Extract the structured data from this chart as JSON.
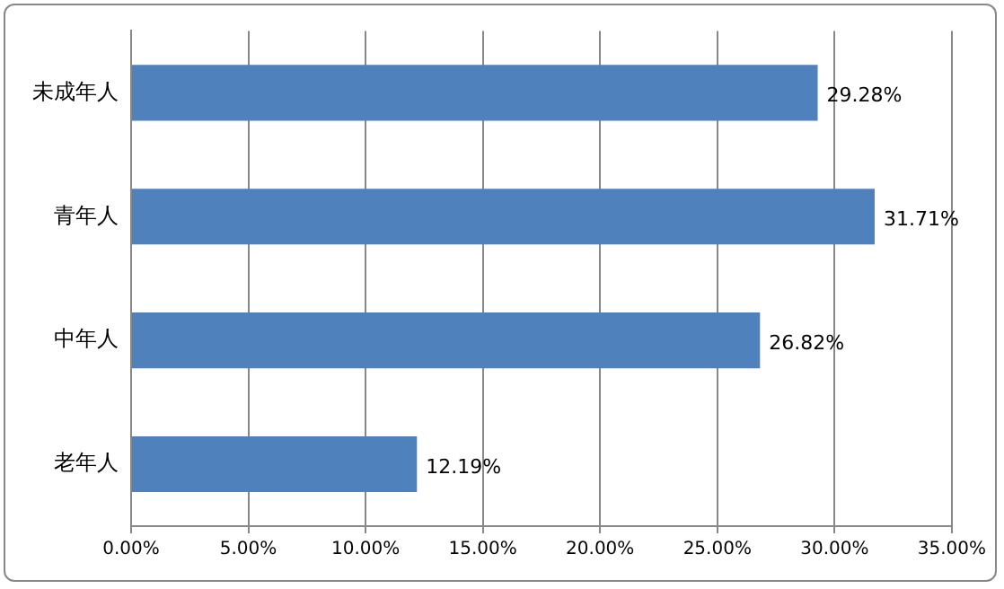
{
  "chart_data": {
    "type": "bar",
    "orientation": "horizontal",
    "categories": [
      "未成年人",
      "青年人",
      "中年人",
      "老年人"
    ],
    "values": [
      29.28,
      31.71,
      26.82,
      12.19
    ],
    "color": "#4f81bd",
    "value_labels": [
      "29.28%",
      "31.71%",
      "26.82%",
      "12.19%"
    ],
    "xlim": [
      0,
      35
    ],
    "xticks": [
      {
        "value": 0,
        "label": "0.00%"
      },
      {
        "value": 5,
        "label": "5.00%"
      },
      {
        "value": 10,
        "label": "10.00%"
      },
      {
        "value": 15,
        "label": "15.00%"
      },
      {
        "value": 20,
        "label": "20.00%"
      },
      {
        "value": 25,
        "label": "25.00%"
      },
      {
        "value": 30,
        "label": "30.00%"
      },
      {
        "value": 35,
        "label": "35.00%"
      }
    ],
    "grid": "x",
    "legend": false
  }
}
